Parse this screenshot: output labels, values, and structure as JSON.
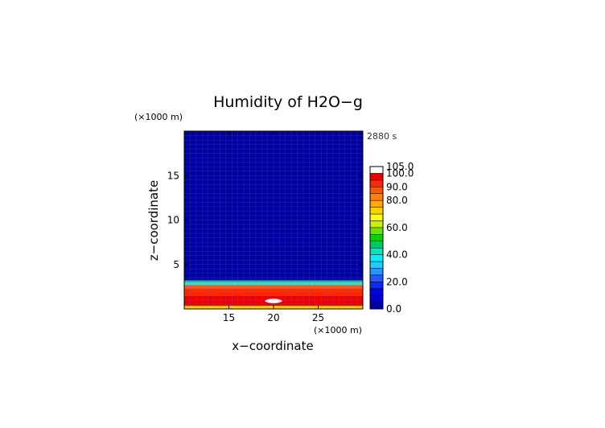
{
  "chart_data": {
    "type": "heatmap",
    "title": "Humidity of H2O−g",
    "xlabel": "x−coordinate",
    "ylabel": "z−coordinate",
    "x_unit": "(×1000 m)",
    "y_unit": "(×1000 m)",
    "time_label": "2880 s",
    "xlim": [
      10,
      30
    ],
    "ylim": [
      0,
      20
    ],
    "x_ticks": [
      15,
      20,
      25
    ],
    "y_ticks": [
      5,
      10,
      15
    ],
    "colorbar": {
      "range": [
        0,
        105
      ],
      "labels": [
        "105.0",
        "100.0",
        "90.0",
        "80.0",
        "60.0",
        "40.0",
        "20.0",
        "0.0"
      ],
      "colors": [
        "#0000a0",
        "#0000c8",
        "#0000e6",
        "#0a28ff",
        "#1e5aff",
        "#2896ff",
        "#28c8ff",
        "#00f0ff",
        "#00e6c0",
        "#00c864",
        "#00d200",
        "#64e600",
        "#c8f000",
        "#ffff00",
        "#ffd200",
        "#ffaa00",
        "#ff8200",
        "#ff5a00",
        "#ff2800",
        "#ee0000",
        "#ffffff"
      ]
    },
    "field": [
      {
        "z_range": [
          3.2,
          20
        ],
        "humidity": 2
      },
      {
        "z_range": [
          3.0,
          3.2
        ],
        "humidity": 45
      },
      {
        "z_range": [
          2.7,
          3.0
        ],
        "humidity": 35
      },
      {
        "z_range": [
          2.3,
          2.7
        ],
        "humidity": 85
      },
      {
        "z_range": [
          1.5,
          2.3
        ],
        "humidity": 92
      },
      {
        "z_range": [
          0.3,
          1.5
        ],
        "humidity": 95
      },
      {
        "z_range": [
          0.8,
          1.2
        ],
        "x_range": [
          14.5,
          25.5
        ],
        "humidity": 99
      },
      {
        "z_range": [
          0.6,
          1.2
        ],
        "x_range": [
          19,
          21
        ],
        "humidity": 104
      },
      {
        "z_range": [
          0,
          0.35
        ],
        "humidity": 72
      }
    ]
  }
}
